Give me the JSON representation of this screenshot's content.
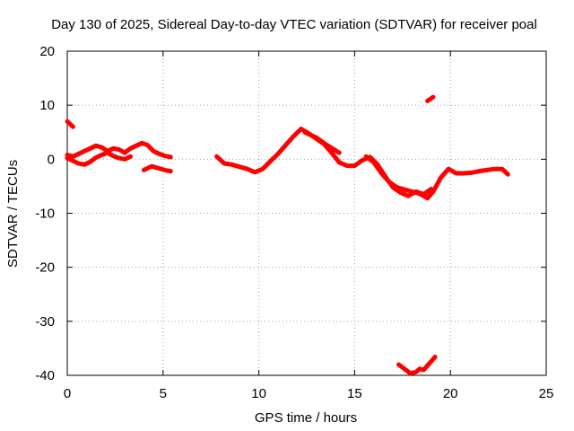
{
  "chart_data": {
    "type": "scatter",
    "title": "Day 130 of 2025, Sidereal Day-to-day VTEC variation (SDTVAR) for receiver poal",
    "xlabel": "GPS time / hours",
    "ylabel": "SDTVAR / TECUs",
    "xlim": [
      0,
      25
    ],
    "ylim": [
      -40,
      20
    ],
    "xticks": [
      0,
      5,
      10,
      15,
      20,
      25
    ],
    "yticks": [
      -40,
      -30,
      -20,
      -10,
      0,
      10,
      20
    ],
    "grid": true,
    "marker_color": "#ff0000",
    "series": [
      {
        "name": "segment-1",
        "x": [
          0.0,
          0.15,
          0.3
        ],
        "y": [
          7.0,
          6.5,
          6.0
        ]
      },
      {
        "name": "segment-2",
        "x": [
          0.0,
          0.3,
          0.6,
          0.9,
          1.2,
          1.5,
          1.8,
          2.1,
          2.4,
          2.7,
          3.0,
          3.3,
          3.6,
          3.9,
          4.2,
          4.5,
          4.8,
          5.1,
          5.4
        ],
        "y": [
          0.8,
          0.5,
          1.0,
          1.5,
          2.0,
          2.5,
          2.2,
          1.5,
          2.0,
          1.8,
          1.2,
          2.0,
          2.5,
          3.0,
          2.6,
          1.5,
          1.0,
          0.6,
          0.4
        ]
      },
      {
        "name": "segment-3",
        "x": [
          0.0,
          0.3,
          0.6,
          0.9,
          1.2,
          1.5,
          1.8,
          2.1,
          2.4,
          2.7,
          3.0,
          3.3
        ],
        "y": [
          0.2,
          -0.3,
          -0.8,
          -1.0,
          -0.5,
          0.3,
          0.8,
          1.2,
          0.6,
          0.2,
          0.0,
          0.5
        ]
      },
      {
        "name": "segment-4",
        "x": [
          4.0,
          4.4,
          4.8,
          5.2,
          5.4
        ],
        "y": [
          -2.0,
          -1.3,
          -1.7,
          -2.1,
          -2.2
        ]
      },
      {
        "name": "segment-5",
        "x": [
          7.8,
          8.2,
          8.6,
          9.0,
          9.4,
          9.8,
          10.2,
          10.6,
          11.0,
          11.4,
          11.8,
          12.2,
          12.6,
          13.0,
          13.4,
          13.8,
          14.2,
          14.6,
          15.0,
          15.4,
          15.8,
          16.2,
          16.6,
          17.0,
          17.4,
          17.8,
          18.2,
          18.6,
          19.0
        ],
        "y": [
          0.5,
          -0.8,
          -1.0,
          -1.4,
          -1.8,
          -2.4,
          -1.8,
          -0.4,
          1.0,
          2.6,
          4.2,
          5.6,
          4.8,
          3.8,
          2.8,
          1.2,
          -0.6,
          -1.2,
          -1.2,
          -0.2,
          0.4,
          -1.0,
          -3.2,
          -5.2,
          -6.2,
          -6.8,
          -6.0,
          -6.5,
          -5.5
        ]
      },
      {
        "name": "segment-6",
        "x": [
          12.4,
          13.0,
          13.6,
          14.2
        ],
        "y": [
          5.0,
          4.0,
          2.5,
          1.2
        ]
      },
      {
        "name": "segment-7",
        "x": [
          15.6,
          16.0,
          16.4,
          16.8,
          17.2,
          17.6,
          18.0,
          18.4,
          18.8,
          19.1
        ],
        "y": [
          0.5,
          -0.6,
          -2.6,
          -4.2,
          -5.2,
          -5.6,
          -6.0,
          -6.4,
          -7.2,
          -6.0
        ]
      },
      {
        "name": "segment-8",
        "x": [
          19.1,
          19.5,
          19.9,
          20.3,
          20.7,
          21.1,
          21.5,
          21.9,
          22.3,
          22.7,
          23.0
        ],
        "y": [
          -6.0,
          -3.4,
          -1.8,
          -2.6,
          -2.6,
          -2.5,
          -2.2,
          -2.0,
          -1.8,
          -1.8,
          -2.8
        ]
      },
      {
        "name": "segment-9",
        "x": [
          18.8,
          19.1
        ],
        "y": [
          10.8,
          11.5
        ]
      },
      {
        "name": "segment-10",
        "x": [
          17.3,
          17.6,
          17.9,
          18.2,
          18.4,
          18.6,
          18.8,
          19.0,
          19.2
        ],
        "y": [
          -38.0,
          -38.8,
          -39.6,
          -39.4,
          -38.8,
          -39.0,
          -38.2,
          -37.4,
          -36.6
        ]
      }
    ]
  }
}
